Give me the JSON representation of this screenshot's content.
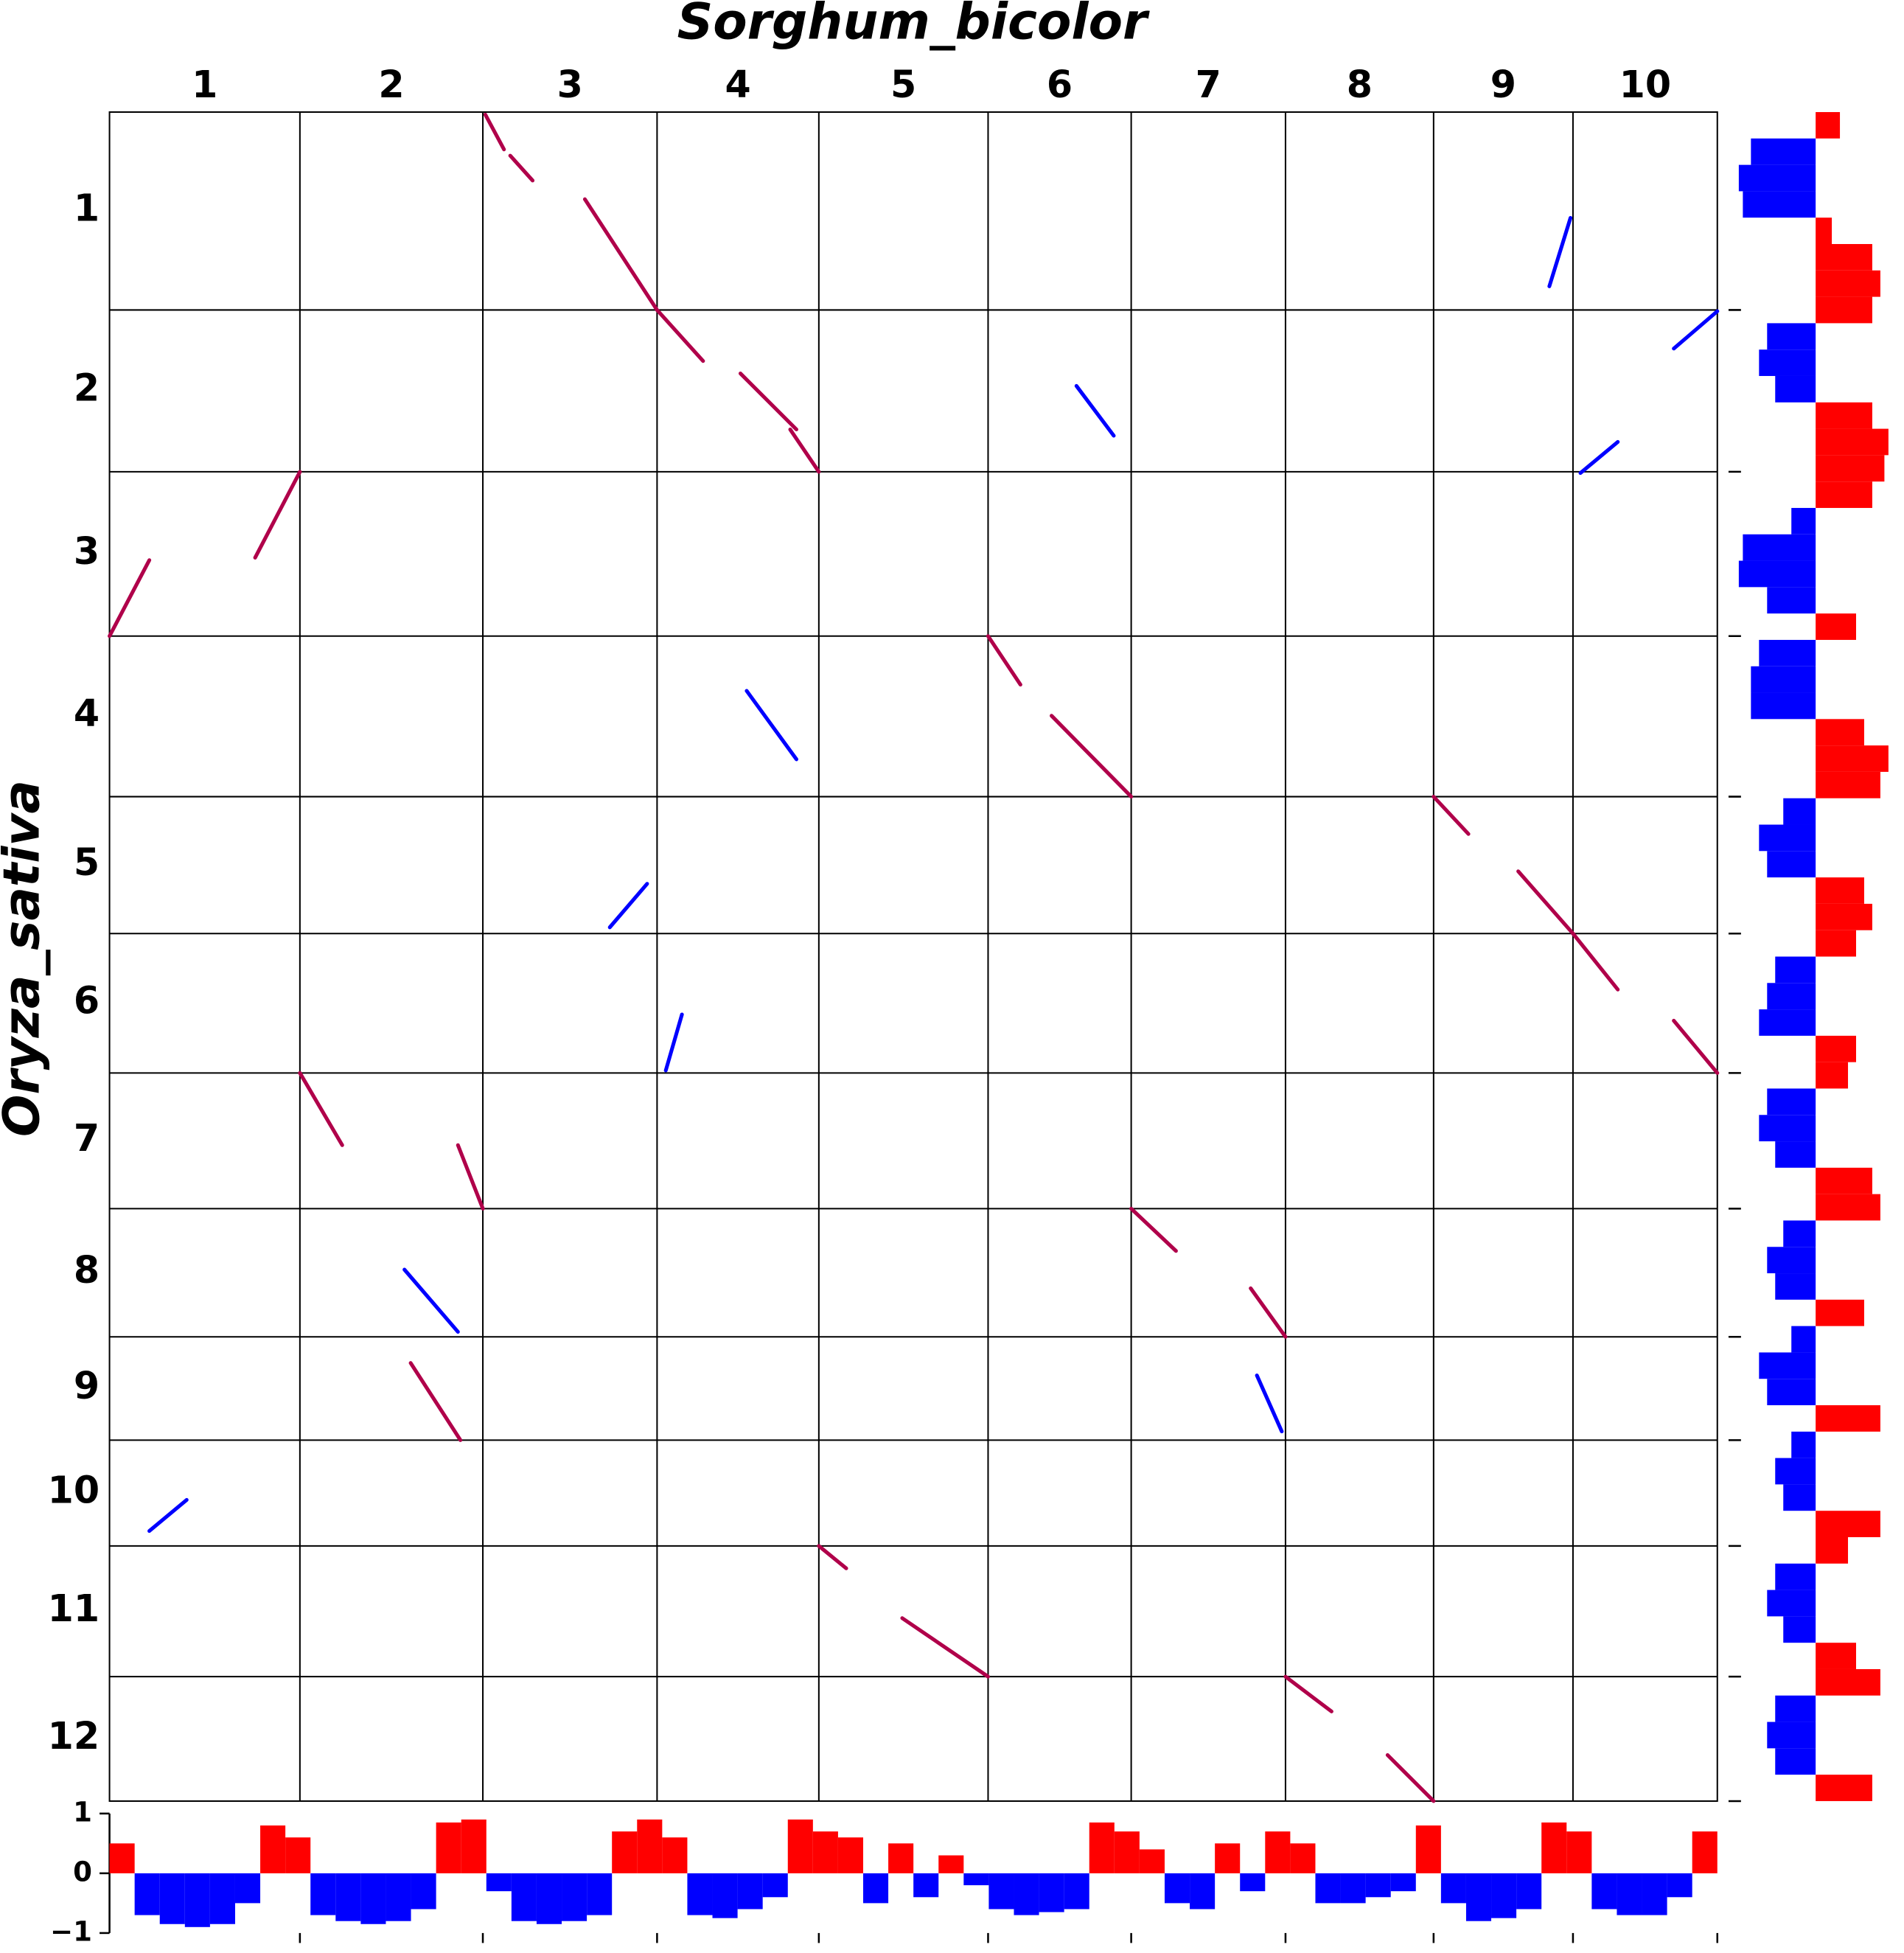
{
  "chart_data": {
    "type": "dotplot",
    "title": "Sorghum_bicolor",
    "ylabel": "Oryza_sativa",
    "col_labels": [
      "1",
      "2",
      "3",
      "4",
      "5",
      "6",
      "7",
      "8",
      "9",
      "10"
    ],
    "col_lengths": [
      153,
      147,
      140,
      130,
      136,
      115,
      124,
      119,
      112,
      116
    ],
    "row_labels": [
      "1",
      "2",
      "3",
      "4",
      "5",
      "6",
      "7",
      "8",
      "9",
      "10",
      "11",
      "12"
    ],
    "row_lengths": [
      159,
      130,
      132,
      129,
      110,
      112,
      109,
      103,
      83,
      85,
      105,
      100
    ],
    "syntenic": {
      "color": "#b0004a",
      "lines": [
        [
          302,
          2,
          317,
          30
        ],
        [
          322,
          35,
          340,
          55
        ],
        [
          382,
          70,
          440,
          159
        ],
        [
          440,
          159,
          477,
          200
        ],
        [
          507,
          210,
          552,
          255
        ],
        [
          547,
          255,
          570,
          289
        ],
        [
          0,
          421,
          32,
          360
        ],
        [
          117,
          358,
          153,
          289
        ],
        [
          706,
          421,
          732,
          460
        ],
        [
          757,
          485,
          821,
          550
        ],
        [
          1064,
          550,
          1092,
          580
        ],
        [
          1132,
          610,
          1176,
          660
        ],
        [
          1176,
          660,
          1212,
          705
        ],
        [
          1257,
          730,
          1292,
          772
        ],
        [
          153,
          772,
          187,
          830
        ],
        [
          280,
          830,
          300,
          881
        ],
        [
          821,
          881,
          857,
          915
        ],
        [
          917,
          945,
          945,
          984
        ],
        [
          242,
          1005,
          282,
          1067
        ],
        [
          570,
          1152,
          592,
          1170
        ],
        [
          637,
          1210,
          706,
          1257
        ],
        [
          945,
          1257,
          982,
          1285
        ],
        [
          1027,
          1320,
          1064,
          1357
        ]
      ]
    },
    "other": {
      "color": "#0000ff",
      "lines": [
        [
          1157,
          140,
          1174,
          85
        ],
        [
          777,
          220,
          807,
          260
        ],
        [
          1257,
          190,
          1292,
          160
        ],
        [
          512,
          465,
          552,
          520
        ],
        [
          402,
          655,
          432,
          620
        ],
        [
          447,
          770,
          460,
          725
        ],
        [
          922,
          1015,
          942,
          1060
        ],
        [
          237,
          930,
          280,
          980
        ],
        [
          32,
          1140,
          62,
          1115
        ],
        [
          1182,
          290,
          1212,
          265
        ]
      ]
    },
    "bottom_hist": {
      "pos_color": "#ff0000",
      "neg_color": "#0000ff",
      "ylim": [
        -1,
        1
      ],
      "yticks": [
        1,
        0,
        {
          "value": -1,
          "label": "−1"
        }
      ],
      "values": [
        0.5,
        -0.7,
        -0.85,
        -0.9,
        -0.85,
        -0.5,
        0.8,
        0.6,
        -0.7,
        -0.8,
        -0.85,
        -0.8,
        -0.6,
        0.85,
        0.9,
        -0.3,
        -0.8,
        -0.85,
        -0.8,
        -0.7,
        0.7,
        0.9,
        0.6,
        -0.7,
        -0.75,
        -0.6,
        -0.4,
        0.9,
        0.7,
        0.6,
        -0.5,
        0.5,
        -0.4,
        0.3,
        -0.2,
        -0.6,
        -0.7,
        -0.65,
        -0.6,
        0.85,
        0.7,
        0.4,
        -0.5,
        -0.6,
        0.5,
        -0.3,
        0.7,
        0.5,
        -0.5,
        -0.5,
        -0.4,
        -0.3,
        0.8,
        -0.5,
        -0.8,
        -0.75,
        -0.6,
        0.85,
        0.7,
        -0.6,
        -0.7,
        -0.7,
        -0.4,
        0.7
      ]
    },
    "right_hist": {
      "pos_color": "#ff0000",
      "neg_color": "#0000ff",
      "xlim": [
        -1,
        1
      ],
      "values": [
        0.3,
        -0.8,
        -0.95,
        -0.9,
        0.2,
        0.7,
        0.8,
        0.7,
        -0.6,
        -0.7,
        -0.5,
        0.7,
        0.9,
        0.85,
        0.7,
        -0.3,
        -0.9,
        -0.95,
        -0.6,
        0.5,
        -0.7,
        -0.8,
        -0.8,
        0.6,
        0.9,
        0.8,
        -0.4,
        -0.7,
        -0.6,
        0.6,
        0.7,
        0.5,
        -0.5,
        -0.6,
        -0.7,
        0.5,
        0.4,
        -0.6,
        -0.7,
        -0.5,
        0.7,
        0.8,
        -0.4,
        -0.6,
        -0.5,
        0.6,
        -0.3,
        -0.7,
        -0.6,
        0.8,
        -0.3,
        -0.5,
        -0.4,
        0.8,
        0.4,
        -0.5,
        -0.6,
        -0.4,
        0.5,
        0.8,
        -0.5,
        -0.6,
        -0.5,
        0.7
      ]
    }
  }
}
